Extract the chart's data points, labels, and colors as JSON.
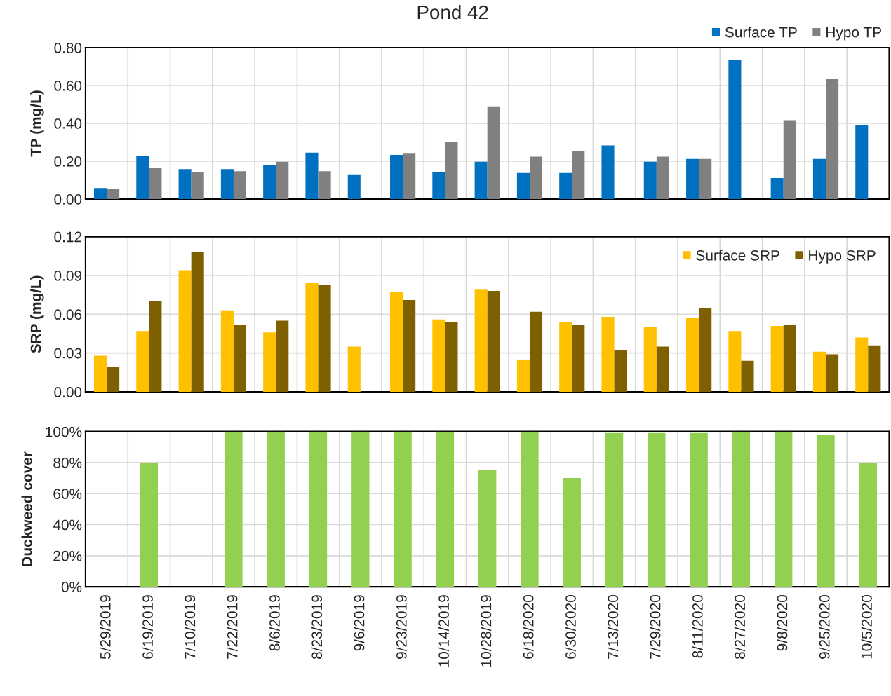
{
  "chart_data": [
    {
      "type": "bar",
      "title": "Pond 42",
      "ylabel": "TP (mg/L)",
      "categories": [
        null,
        null,
        null,
        null,
        null,
        null,
        null,
        null,
        null,
        null,
        null,
        null,
        null,
        null,
        null,
        null,
        null,
        null,
        null
      ],
      "series": [
        {
          "name": "Surface TP",
          "color": "#0070c0",
          "values": [
            0.058,
            0.229,
            0.158,
            0.158,
            0.18,
            0.245,
            0.131,
            0.233,
            0.143,
            0.197,
            0.138,
            0.138,
            0.283,
            0.197,
            0.212,
            0.737,
            0.111,
            0.212,
            0.391
          ]
        },
        {
          "name": "Hypo TP",
          "color": "#808080",
          "values": [
            0.055,
            0.165,
            0.143,
            0.147,
            0.197,
            0.147,
            null,
            0.24,
            0.302,
            0.49,
            0.224,
            0.256,
            null,
            0.224,
            0.212,
            null,
            0.417,
            0.635,
            null
          ]
        }
      ],
      "ylim": [
        0,
        0.8
      ],
      "yticks": [
        {
          "value": 0,
          "label": "0.00"
        },
        {
          "value": 0.2,
          "label": "0.20"
        },
        {
          "value": 0.4,
          "label": "0.40"
        },
        {
          "value": 0.6,
          "label": "0.60"
        },
        {
          "value": 0.8,
          "label": "0.80"
        }
      ],
      "grid": true,
      "legend": "top right",
      "tick_labels": "y"
    },
    {
      "type": "bar",
      "ylabel": "SRP (mg/L)",
      "categories": [
        null,
        null,
        null,
        null,
        null,
        null,
        null,
        null,
        null,
        null,
        null,
        null,
        null,
        null,
        null,
        null,
        null,
        null,
        null
      ],
      "series": [
        {
          "name": "Surface SRP",
          "color": "#ffc000",
          "values": [
            0.028,
            0.047,
            0.094,
            0.063,
            0.046,
            0.084,
            0.035,
            0.077,
            0.056,
            0.079,
            0.025,
            0.054,
            0.058,
            0.05,
            0.057,
            0.047,
            0.051,
            0.031,
            0.042
          ]
        },
        {
          "name": "Hypo SRP",
          "color": "#7f6000",
          "values": [
            0.019,
            0.07,
            0.108,
            0.052,
            0.055,
            0.083,
            null,
            0.071,
            0.054,
            0.078,
            0.062,
            0.052,
            0.032,
            0.035,
            0.065,
            0.024,
            0.052,
            0.029,
            0.036
          ]
        }
      ],
      "ylim": [
        0,
        0.12
      ],
      "yticks": [
        {
          "value": 0,
          "label": "0.00"
        },
        {
          "value": 0.03,
          "label": "0.03"
        },
        {
          "value": 0.06,
          "label": "0.06"
        },
        {
          "value": 0.09,
          "label": "0.09"
        },
        {
          "value": 0.12,
          "label": "0.12"
        }
      ],
      "grid": true,
      "legend": "top right",
      "tick_labels": "y"
    },
    {
      "type": "bar",
      "ylabel": "Duckweed cover",
      "categories": [
        "5/29/2019",
        "6/19/2019",
        "7/10/2019",
        "7/22/2019",
        "8/6/2019",
        "8/23/2019",
        "9/6/2019",
        "9/23/2019",
        "10/14/2019",
        "10/28/2019",
        "6/18/2020",
        "6/30/2020",
        "7/13/2020",
        "7/29/2020",
        "8/11/2020",
        "8/27/2020",
        "9/8/2020",
        "9/25/2020",
        "10/5/2020"
      ],
      "series": [
        {
          "color": "#92d050",
          "values": [
            null,
            80,
            null,
            100,
            100,
            100,
            100,
            100,
            100,
            75,
            100,
            70,
            99,
            99,
            99,
            100,
            100,
            98,
            80
          ]
        }
      ],
      "ylim": [
        0,
        100
      ],
      "yticks": [
        {
          "value": 0,
          "label": "0%"
        },
        {
          "value": 20,
          "label": "20%"
        },
        {
          "value": 40,
          "label": "40%"
        },
        {
          "value": 60,
          "label": "60%"
        },
        {
          "value": 80,
          "label": "80%"
        },
        {
          "value": 100,
          "label": "100%"
        }
      ],
      "grid": true
    }
  ]
}
